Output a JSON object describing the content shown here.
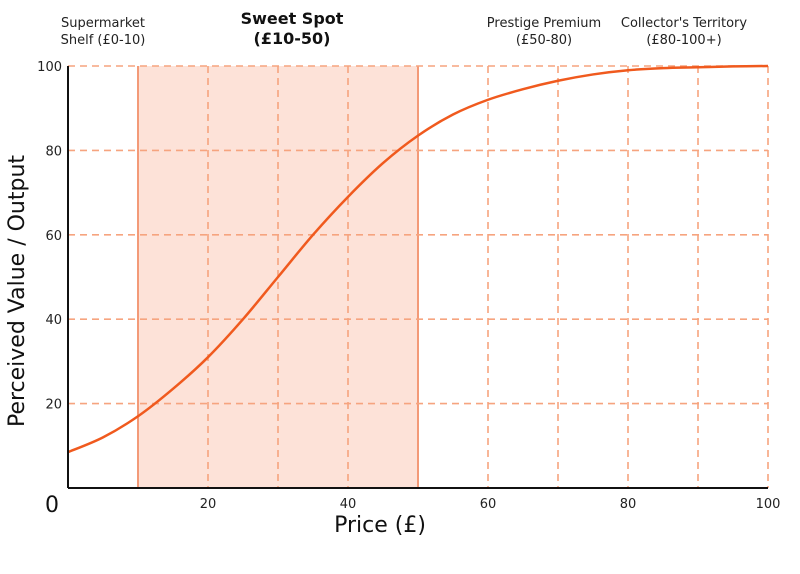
{
  "chart_data": {
    "type": "line",
    "xlabel": "Price (£)",
    "ylabel": "Perceived Value / Output",
    "xlim": [
      0,
      100
    ],
    "ylim": [
      0,
      100
    ],
    "x_ticks": [
      20,
      40,
      60,
      80,
      100
    ],
    "y_ticks": [
      20,
      40,
      60,
      80,
      100
    ],
    "origin_label": "0",
    "grid": true,
    "highlight_band": {
      "from": 10,
      "to": 50
    },
    "zone_labels": [
      {
        "lines": [
          "Supermarket",
          "Shelf (£0-10)"
        ],
        "x_center": 5,
        "bold": false
      },
      {
        "lines": [
          "Sweet Spot",
          "(£10-50)"
        ],
        "x_center": 32,
        "bold": true
      },
      {
        "lines": [
          "Prestige Premium",
          "(£50-80)"
        ],
        "x_center": 68,
        "bold": false
      },
      {
        "lines": [
          "Collector's Territory",
          "(£80-100+)"
        ],
        "x_center": 88,
        "bold": false
      }
    ],
    "series": [
      {
        "x": [
          0,
          5,
          10,
          15,
          20,
          25,
          30,
          35,
          40,
          45,
          50,
          55,
          60,
          65,
          70,
          75,
          80,
          85,
          90,
          95,
          100
        ],
        "y": [
          8.5,
          12,
          17,
          23.5,
          31,
          40,
          50,
          60,
          69,
          77,
          83.5,
          88.5,
          92,
          94.5,
          96.5,
          98,
          99,
          99.5,
          99.7,
          99.9,
          100
        ]
      }
    ],
    "colors": {
      "curve": "#f05a1e",
      "grid": "#f6a47f",
      "band_fill": "#fde2d8",
      "band_edge": "#f39a78",
      "axis": "#111111"
    }
  }
}
